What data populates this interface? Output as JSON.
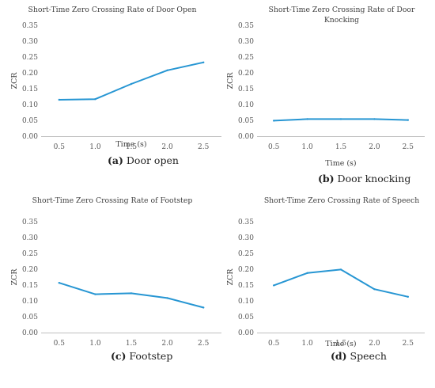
{
  "style": {
    "line_color": "#2796d3",
    "axis_color": "#bfbfbf",
    "text_color": "#404040"
  },
  "chart_data": [
    {
      "type": "line",
      "title": "Short-Time Zero Crossing Rate of Door Open",
      "xlabel": "Time (s)",
      "ylabel": "ZCR",
      "caption_letter": "(a)",
      "caption_text": " Door open",
      "x": [
        "0.5",
        "1.0",
        "1.5",
        "2.0",
        "2.5"
      ],
      "yticks": [
        "0.00",
        "0.05",
        "0.10",
        "0.15",
        "0.20",
        "0.25",
        "0.30",
        "0.35"
      ],
      "ylim": [
        0,
        0.35
      ],
      "grid": false,
      "values": [
        0.115,
        0.117,
        0.165,
        0.208,
        0.233
      ]
    },
    {
      "type": "line",
      "title": "Short-Time Zero Crossing Rate of Door Knocking",
      "xlabel": "Time (s)",
      "ylabel": "ZCR",
      "caption_letter": "(b)",
      "caption_text": " Door knocking",
      "x": [
        "0.5",
        "1.0",
        "1.5",
        "2.0",
        "2.5"
      ],
      "yticks": [
        "0.00",
        "0.05",
        "0.10",
        "0.15",
        "0.20",
        "0.25",
        "0.30",
        "0.35"
      ],
      "ylim": [
        0,
        0.35
      ],
      "grid": false,
      "values": [
        0.049,
        0.054,
        0.054,
        0.054,
        0.051
      ]
    },
    {
      "type": "line",
      "title": "Short-Time Zero Crossing Rate of Footstep",
      "xlabel": "",
      "ylabel": "ZCR",
      "caption_letter": "(c)",
      "caption_text": " Footstep",
      "x": [
        "0.5",
        "1.0",
        "1.5",
        "2.0",
        "2.5"
      ],
      "yticks": [
        "0.00",
        "0.05",
        "0.10",
        "0.15",
        "0.20",
        "0.25",
        "0.30",
        "0.35"
      ],
      "ylim": [
        0,
        0.35
      ],
      "grid": false,
      "values": [
        0.157,
        0.121,
        0.124,
        0.109,
        0.079
      ]
    },
    {
      "type": "line",
      "title": "Short-Time Zero Crossing Rate of Speech",
      "xlabel": "Time (s)",
      "ylabel": "ZCR",
      "caption_letter": "(d)",
      "caption_text": " Speech",
      "x": [
        "0.5",
        "1.0",
        "1.5",
        "2.0",
        "2.5"
      ],
      "yticks": [
        "0.00",
        "0.05",
        "0.10",
        "0.15",
        "0.20",
        "0.25",
        "0.30",
        "0.35"
      ],
      "ylim": [
        0,
        0.35
      ],
      "grid": false,
      "values": [
        0.149,
        0.188,
        0.199,
        0.137,
        0.113
      ]
    }
  ]
}
